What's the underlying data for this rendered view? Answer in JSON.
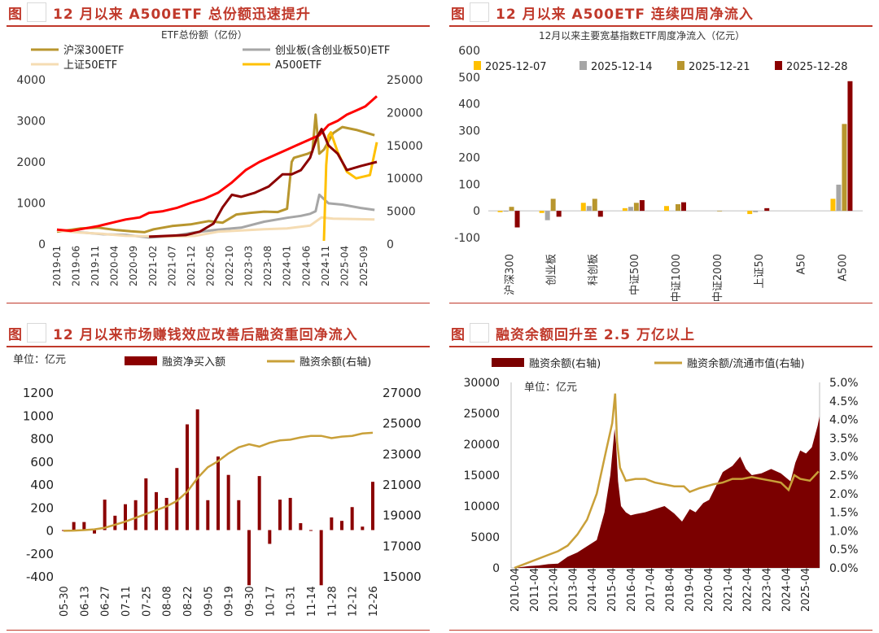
{
  "panels": [
    {
      "fig": "图",
      "title": "12 月以来 A500ETF 总份额迅速提升"
    },
    {
      "fig": "图",
      "title": "12 月以来 A500ETF 连续四周净流入"
    },
    {
      "fig": "图",
      "title": "12 月以来市场赚钱效应改善后融资重回净流入"
    },
    {
      "fig": "图",
      "title": "融资余额回升至 2.5 万亿以上"
    }
  ],
  "chart_data": [
    {
      "type": "line",
      "title": "ETF总份额（亿份）",
      "x_ticks": [
        "2019-01",
        "2019-06",
        "2019-11",
        "2020-04",
        "2020-09",
        "2021-02",
        "2021-07",
        "2021-12",
        "2022-05",
        "2022-10",
        "2023-03",
        "2023-08",
        "2024-01",
        "2024-06",
        "2024-11",
        "2025-04",
        "2025-09"
      ],
      "ylim_left": [
        0,
        4000
      ],
      "yticks_left": [
        0,
        1000,
        2000,
        3000,
        4000
      ],
      "ylim_right": [
        0,
        25000
      ],
      "yticks_right": [
        0,
        5000,
        10000,
        15000,
        20000,
        25000
      ],
      "series": [
        {
          "name": "沪深300ETF",
          "color": "#b8962e",
          "axis": "left",
          "x": [
            2019.0,
            2019.5,
            2019.9,
            2020.3,
            2020.6,
            2020.9,
            2021.1,
            2021.5,
            2021.9,
            2022.3,
            2022.6,
            2022.9,
            2023.2,
            2023.5,
            2023.8,
            2024.0,
            2024.1,
            2024.15,
            2024.3,
            2024.45,
            2024.55,
            2024.62,
            2024.7,
            2024.8,
            2024.9,
            2025.0,
            2025.2,
            2025.5,
            2025.9
          ],
          "values": [
            300,
            380,
            400,
            340,
            310,
            290,
            360,
            440,
            480,
            560,
            520,
            720,
            760,
            790,
            780,
            860,
            2000,
            2100,
            2150,
            2200,
            2250,
            3150,
            2200,
            2300,
            2500,
            2700,
            2850,
            2780,
            2650
          ]
        },
        {
          "name": "创业板(含创业板50)ETF",
          "color": "#a6a6a6",
          "axis": "right",
          "x": [
            2019.0,
            2019.5,
            2020.0,
            2020.5,
            2021.0,
            2021.5,
            2022.0,
            2022.5,
            2023.0,
            2023.5,
            2024.0,
            2024.3,
            2024.5,
            2024.62,
            2024.7,
            2024.9,
            2025.2,
            2025.6,
            2025.9
          ],
          "values": [
            2200,
            1800,
            1500,
            1400,
            1000,
            1200,
            1800,
            2200,
            2500,
            3400,
            4000,
            4300,
            4600,
            5000,
            7500,
            6200,
            6000,
            5500,
            5200
          ]
        },
        {
          "name": "上证50ETF",
          "color": "#f5dcb3",
          "axis": "left",
          "x": [
            2019.0,
            2019.5,
            2020.0,
            2020.5,
            2021.0,
            2021.5,
            2022.0,
            2022.5,
            2023.0,
            2023.5,
            2024.0,
            2024.5,
            2024.75,
            2025.0,
            2025.5,
            2025.9
          ],
          "values": [
            330,
            280,
            250,
            200,
            190,
            180,
            200,
            300,
            330,
            360,
            380,
            450,
            650,
            620,
            610,
            600
          ]
        },
        {
          "name": "A500ETF",
          "color": "#ffc000",
          "axis": "right",
          "x": [
            2024.8,
            2024.85,
            2024.9,
            2024.95,
            2025.1,
            2025.3,
            2025.5,
            2025.8,
            2025.95
          ],
          "values": [
            500,
            12000,
            16500,
            17000,
            14000,
            11000,
            10000,
            10500,
            15500
          ]
        },
        {
          "name": "",
          "color": "#ff0000",
          "axis": "left",
          "x": [
            2019.0,
            2019.3,
            2019.6,
            2019.9,
            2020.2,
            2020.5,
            2020.8,
            2021.0,
            2021.3,
            2021.6,
            2021.9,
            2022.2,
            2022.5,
            2022.8,
            2023.1,
            2023.4,
            2023.7,
            2024.0,
            2024.2,
            2024.5,
            2024.7,
            2024.9,
            2025.1,
            2025.3,
            2025.5,
            2025.7,
            2025.95
          ],
          "values": [
            350,
            320,
            380,
            440,
            520,
            600,
            650,
            760,
            800,
            880,
            1000,
            1100,
            1250,
            1500,
            1800,
            2000,
            2150,
            2300,
            2400,
            2550,
            2650,
            2900,
            3000,
            3150,
            3250,
            3350,
            3600
          ]
        },
        {
          "name": "",
          "color": "#8b0000",
          "axis": "left",
          "x": [
            2021.0,
            2021.4,
            2021.8,
            2022.1,
            2022.4,
            2022.6,
            2022.8,
            2023.0,
            2023.3,
            2023.6,
            2023.9,
            2024.1,
            2024.3,
            2024.5,
            2024.65,
            2024.75,
            2024.9,
            2025.1,
            2025.3,
            2025.6,
            2025.95
          ],
          "values": [
            180,
            200,
            220,
            300,
            500,
            900,
            1200,
            1150,
            1250,
            1400,
            1700,
            1700,
            1800,
            2100,
            2600,
            2800,
            2400,
            2200,
            1800,
            1900,
            2000
          ]
        }
      ]
    },
    {
      "type": "bar",
      "title": "12月以来主要宽基指数ETF周度净流入（亿元）",
      "categories": [
        "沪深300",
        "创业板",
        "科创板",
        "中证500",
        "中证1000",
        "中证2000",
        "上证50",
        "A50",
        "A500"
      ],
      "ylim": [
        -100,
        600
      ],
      "yticks": [
        -100,
        0,
        100,
        200,
        300,
        400,
        500,
        600
      ],
      "series": [
        {
          "name": "2025-12-07",
          "color": "#ffc000",
          "values": [
            -5,
            -8,
            30,
            10,
            18,
            0,
            -12,
            0,
            45
          ]
        },
        {
          "name": "2025-12-14",
          "color": "#a6a6a6",
          "values": [
            -3,
            -35,
            18,
            15,
            0,
            0,
            -5,
            0,
            98
          ]
        },
        {
          "name": "2025-12-21",
          "color": "#b8962e",
          "values": [
            15,
            45,
            45,
            30,
            25,
            -2,
            0,
            0,
            325
          ]
        },
        {
          "name": "2025-12-28",
          "color": "#8b0000",
          "values": [
            -62,
            -22,
            -22,
            40,
            32,
            0,
            10,
            0,
            485
          ]
        }
      ]
    },
    {
      "type": "bar",
      "unit": "单位：亿元",
      "categories": [
        "05-30",
        "06-06",
        "06-13",
        "06-20",
        "06-27",
        "07-04",
        "07-11",
        "07-18",
        "07-25",
        "08-01",
        "08-08",
        "08-15",
        "08-22",
        "08-29",
        "09-05",
        "09-12",
        "09-19",
        "09-26",
        "09-30",
        "10-10",
        "10-17",
        "10-24",
        "10-31",
        "11-07",
        "11-14",
        "11-21",
        "11-28",
        "12-05",
        "12-12",
        "12-19",
        "12-26"
      ],
      "x_ticks": [
        "05-30",
        "06-13",
        "06-27",
        "07-11",
        "07-25",
        "08-08",
        "08-22",
        "09-05",
        "09-19",
        "09-30",
        "10-17",
        "10-31",
        "11-14",
        "11-28",
        "12-12",
        "12-26"
      ],
      "ylim_left": [
        -400,
        1200
      ],
      "yticks_left": [
        -400,
        -200,
        0,
        200,
        400,
        600,
        800,
        1000,
        1200
      ],
      "ylim_right": [
        15000,
        27000
      ],
      "yticks_right": [
        15000,
        17000,
        19000,
        21000,
        23000,
        25000,
        27000
      ],
      "series": [
        {
          "name": "融资净买入额",
          "color": "#8b0000",
          "axis": "left",
          "values": [
            0,
            70,
            70,
            -30,
            265,
            125,
            225,
            260,
            450,
            330,
            280,
            540,
            920,
            1050,
            260,
            640,
            480,
            260,
            -480,
            470,
            -120,
            265,
            280,
            60,
            -5,
            -480,
            110,
            80,
            200,
            30,
            420
          ]
        },
        {
          "name": "融资余额(右轴)",
          "color": "#c9a039",
          "axis": "right",
          "values": [
            17950,
            17970,
            18000,
            18050,
            18150,
            18350,
            18550,
            18800,
            19050,
            19300,
            19550,
            19900,
            20500,
            21400,
            22100,
            22500,
            23000,
            23400,
            23600,
            23450,
            23700,
            23850,
            23900,
            24050,
            24150,
            24150,
            24000,
            24100,
            24150,
            24300,
            24350
          ]
        }
      ]
    },
    {
      "type": "area",
      "unit": "单位：亿元",
      "x_ticks": [
        "2010-04",
        "2011-04",
        "2012-04",
        "2013-04",
        "2014-04",
        "2015-04",
        "2016-04",
        "2017-04",
        "2018-04",
        "2019-04",
        "2020-04",
        "2021-04",
        "2022-04",
        "2023-04",
        "2024-04",
        "2025-04"
      ],
      "ylim_left": [
        0,
        30000
      ],
      "yticks_left": [
        0,
        5000,
        10000,
        15000,
        20000,
        25000,
        30000
      ],
      "ylim_right": [
        0,
        5
      ],
      "yticks_right": [
        "0.0%",
        "0.5%",
        "1.0%",
        "1.5%",
        "2.0%",
        "2.5%",
        "3.0%",
        "3.5%",
        "4.0%",
        "4.5%",
        "5.0%"
      ],
      "series": [
        {
          "name": "融资余额(右轴)",
          "color": "#7b0000",
          "axis": "left",
          "x": [
            2010.25,
            2011.0,
            2011.5,
            2012.0,
            2012.5,
            2013.0,
            2013.5,
            2014.0,
            2014.5,
            2014.9,
            2015.2,
            2015.42,
            2015.5,
            2015.6,
            2015.75,
            2016.0,
            2016.25,
            2016.5,
            2017.0,
            2017.5,
            2018.0,
            2018.5,
            2018.9,
            2019.3,
            2019.6,
            2020.0,
            2020.3,
            2020.7,
            2021.0,
            2021.5,
            2021.9,
            2022.2,
            2022.5,
            2023.0,
            2023.5,
            2024.0,
            2024.5,
            2024.75,
            2025.0,
            2025.3,
            2025.6,
            2025.9,
            2026.0
          ],
          "values": [
            0,
            300,
            400,
            600,
            700,
            1800,
            2500,
            3500,
            4500,
            9000,
            15000,
            22500,
            20000,
            14000,
            10000,
            9000,
            8500,
            8700,
            9000,
            9500,
            10000,
            8800,
            7500,
            9500,
            9000,
            10500,
            11000,
            13500,
            15500,
            16500,
            18000,
            16000,
            15000,
            15300,
            16000,
            15300,
            14000,
            17000,
            19000,
            18500,
            19500,
            23000,
            24500
          ]
        },
        {
          "name": "融资余额/流通市值(右轴)",
          "color": "#c9a039",
          "axis": "right",
          "x": [
            2010.25,
            2011.0,
            2012.0,
            2012.5,
            2013.0,
            2013.5,
            2014.0,
            2014.5,
            2015.0,
            2015.3,
            2015.45,
            2015.55,
            2015.7,
            2016.0,
            2016.5,
            2017.0,
            2017.5,
            2018.0,
            2018.5,
            2019.0,
            2019.3,
            2019.8,
            2020.5,
            2021.0,
            2021.5,
            2022.0,
            2022.5,
            2023.0,
            2023.5,
            2024.0,
            2024.4,
            2024.7,
            2025.0,
            2025.5,
            2025.95
          ],
          "values": [
            0,
            0.15,
            0.35,
            0.45,
            0.6,
            0.9,
            1.3,
            2.0,
            3.2,
            3.9,
            4.7,
            3.4,
            2.7,
            2.35,
            2.4,
            2.4,
            2.3,
            2.25,
            2.2,
            2.2,
            2.05,
            2.15,
            2.25,
            2.3,
            2.4,
            2.4,
            2.45,
            2.4,
            2.35,
            2.3,
            2.1,
            2.5,
            2.4,
            2.35,
            2.6
          ]
        }
      ]
    }
  ]
}
